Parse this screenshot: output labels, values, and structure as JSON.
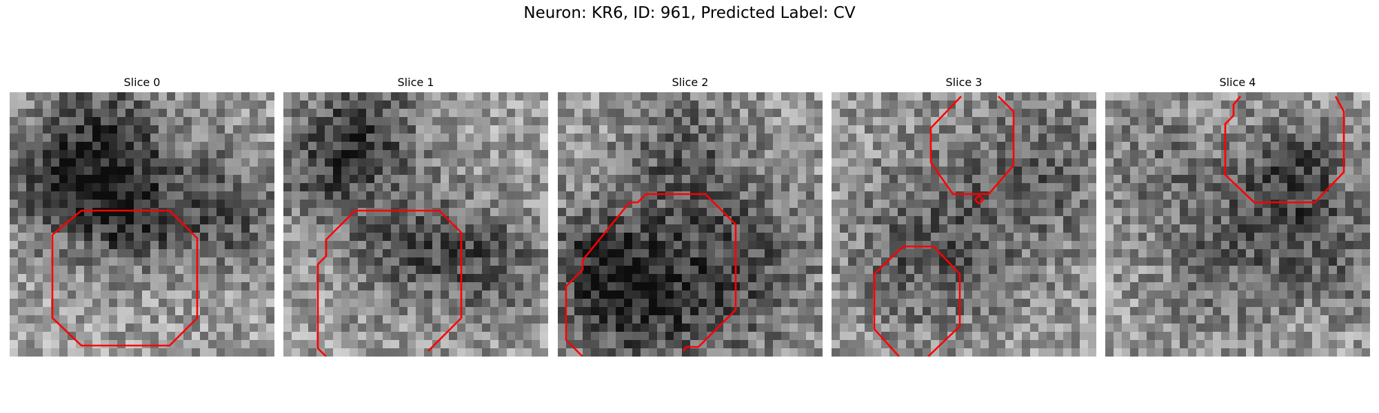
{
  "figure": {
    "title": "Neuron: KR6, ID: 961, Predicted Label: CV"
  },
  "slices": [
    {
      "title": "Slice 0"
    },
    {
      "title": "Slice 1"
    },
    {
      "title": "Slice 2"
    },
    {
      "title": "Slice 3"
    },
    {
      "title": "Slice 4"
    }
  ],
  "colors": {
    "contour": "#ff0000",
    "background": "#ffffff"
  }
}
